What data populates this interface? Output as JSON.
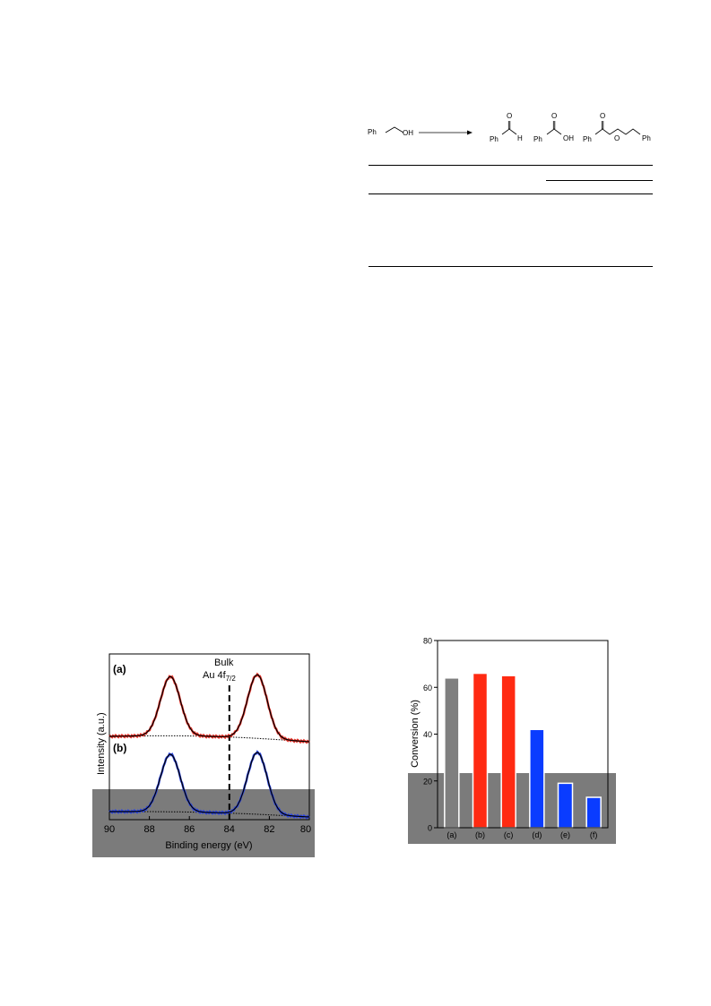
{
  "scheme": {
    "reactant_ph": "Ph",
    "reactant_oh": "OH",
    "product1_ph": "Ph",
    "product1_h": "H",
    "product1_o": "O",
    "product2_ph": "Ph",
    "product2_oh": "OH",
    "product2_o": "O",
    "product3_ph": "Ph",
    "product3_o_top": "O",
    "product3_o_ester": "O",
    "product3_ph2": "Ph"
  },
  "xps": {
    "label_a": "(a)",
    "label_b": "(b)",
    "annotation_line1": "Bulk",
    "annotation_line2": "Au 4f",
    "annotation_sub": "7/2",
    "ylabel": "Intensity (a.u.)",
    "xlabel": "Binding energy (eV)",
    "ticks": [
      "90",
      "88",
      "86",
      "84",
      "82",
      "80"
    ],
    "colors": {
      "a": "#e8332a",
      "b": "#2b44e0",
      "fit": "#000000"
    }
  },
  "chart_data": {
    "type": "bar",
    "categories": [
      "(a)",
      "(b)",
      "(c)",
      "(d)",
      "(e)",
      "(f)"
    ],
    "values": [
      64,
      66,
      65,
      42,
      19,
      13
    ],
    "colors": [
      "#7f7f7f",
      "#ff2a12",
      "#ff2a12",
      "#0a3cff",
      "#0a3cff",
      "#0a3cff"
    ],
    "ylabel": "Conversion (%)",
    "ylim": [
      0,
      80
    ],
    "yticks": [
      "0",
      "20",
      "40",
      "60",
      "80"
    ]
  }
}
